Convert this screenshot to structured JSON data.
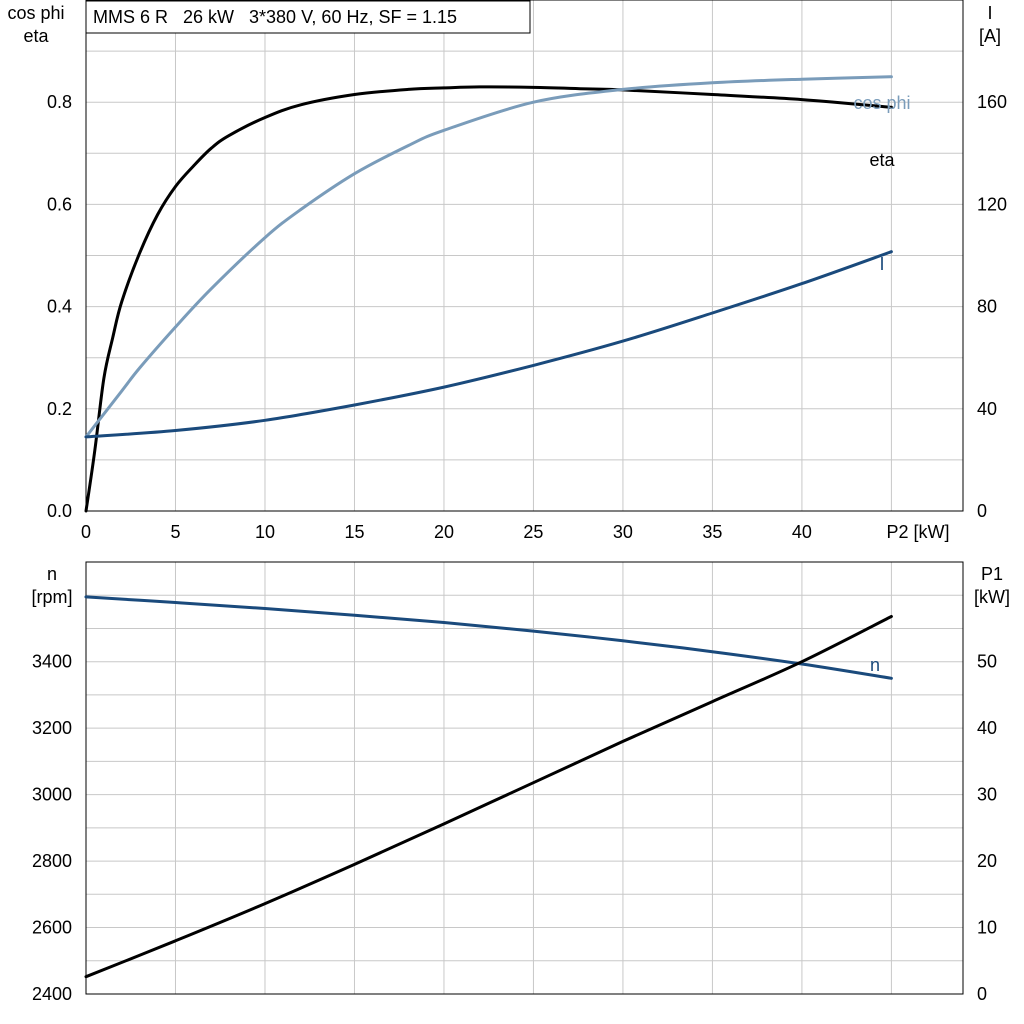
{
  "chart_data": [
    {
      "type": "line",
      "title": "MMS 6 R   26 kW   3*380 V, 60 Hz, SF = 1.15",
      "xlabel": "P2 [kW]",
      "ylabel_left": [
        "cos phi",
        "eta"
      ],
      "ylabel_right": [
        "I",
        "[A]"
      ],
      "xlim": [
        0,
        49
      ],
      "ylim_left": [
        0,
        1.0
      ],
      "ylim_right": [
        0,
        200
      ],
      "x_ticks": [
        0,
        5,
        10,
        15,
        20,
        25,
        30,
        35,
        40
      ],
      "y_ticks_left": [
        "0.0",
        "0.2",
        "0.4",
        "0.6",
        "0.8"
      ],
      "y_ticks_right": [
        0,
        40,
        80,
        120,
        160
      ],
      "grid": true,
      "series": [
        {
          "name": "eta",
          "axis": "left",
          "color": "#000000",
          "x": [
            0,
            0.5,
            1,
            1.5,
            2,
            3,
            4,
            5,
            6,
            7,
            8,
            10,
            12,
            15,
            18,
            20,
            22,
            25,
            28,
            30,
            35,
            40,
            45
          ],
          "y": [
            0.0,
            0.12,
            0.26,
            0.34,
            0.41,
            0.505,
            0.58,
            0.635,
            0.675,
            0.71,
            0.735,
            0.77,
            0.795,
            0.815,
            0.825,
            0.828,
            0.83,
            0.829,
            0.826,
            0.824,
            0.815,
            0.805,
            0.79
          ]
        },
        {
          "name": "cos phi",
          "axis": "left",
          "color": "#7a9cba",
          "x": [
            0,
            1,
            2,
            3,
            5,
            7,
            10,
            12,
            15,
            18,
            20,
            25,
            30,
            35,
            40,
            45
          ],
          "y": [
            0.145,
            0.19,
            0.235,
            0.28,
            0.36,
            0.435,
            0.535,
            0.59,
            0.66,
            0.715,
            0.745,
            0.8,
            0.825,
            0.838,
            0.845,
            0.85
          ]
        },
        {
          "name": "I",
          "axis": "right",
          "color": "#1a4a7c",
          "x": [
            0,
            5,
            10,
            15,
            20,
            25,
            30,
            35,
            40,
            45
          ],
          "y": [
            29,
            31.5,
            35.5,
            41.5,
            48.5,
            57,
            66.5,
            77.5,
            89,
            101.5
          ]
        }
      ]
    },
    {
      "type": "line",
      "title": "",
      "xlabel": "",
      "ylabel_left": [
        "n",
        "[rpm]"
      ],
      "ylabel_right": [
        "P1",
        "[kW]"
      ],
      "xlim": [
        0,
        49
      ],
      "ylim_left": [
        2400,
        3700
      ],
      "ylim_right": [
        0,
        65
      ],
      "y_ticks_left": [
        2400,
        2600,
        2800,
        3000,
        3200,
        3400
      ],
      "y_ticks_right": [
        0,
        10,
        20,
        30,
        40,
        50
      ],
      "grid": true,
      "series": [
        {
          "name": "n",
          "axis": "left",
          "color": "#1a4a7c",
          "x": [
            0,
            5,
            10,
            15,
            20,
            25,
            30,
            35,
            40,
            45
          ],
          "y": [
            3595,
            3578,
            3560,
            3540,
            3518,
            3492,
            3463,
            3430,
            3393,
            3350
          ]
        },
        {
          "name": "",
          "axis": "right",
          "color": "#000000",
          "x": [
            0,
            5,
            10,
            15,
            20,
            25,
            30,
            35,
            40,
            45
          ],
          "y": [
            2.6,
            8.0,
            13.6,
            19.5,
            25.6,
            31.8,
            38.0,
            44.0,
            50.0,
            56.8
          ]
        }
      ]
    }
  ]
}
